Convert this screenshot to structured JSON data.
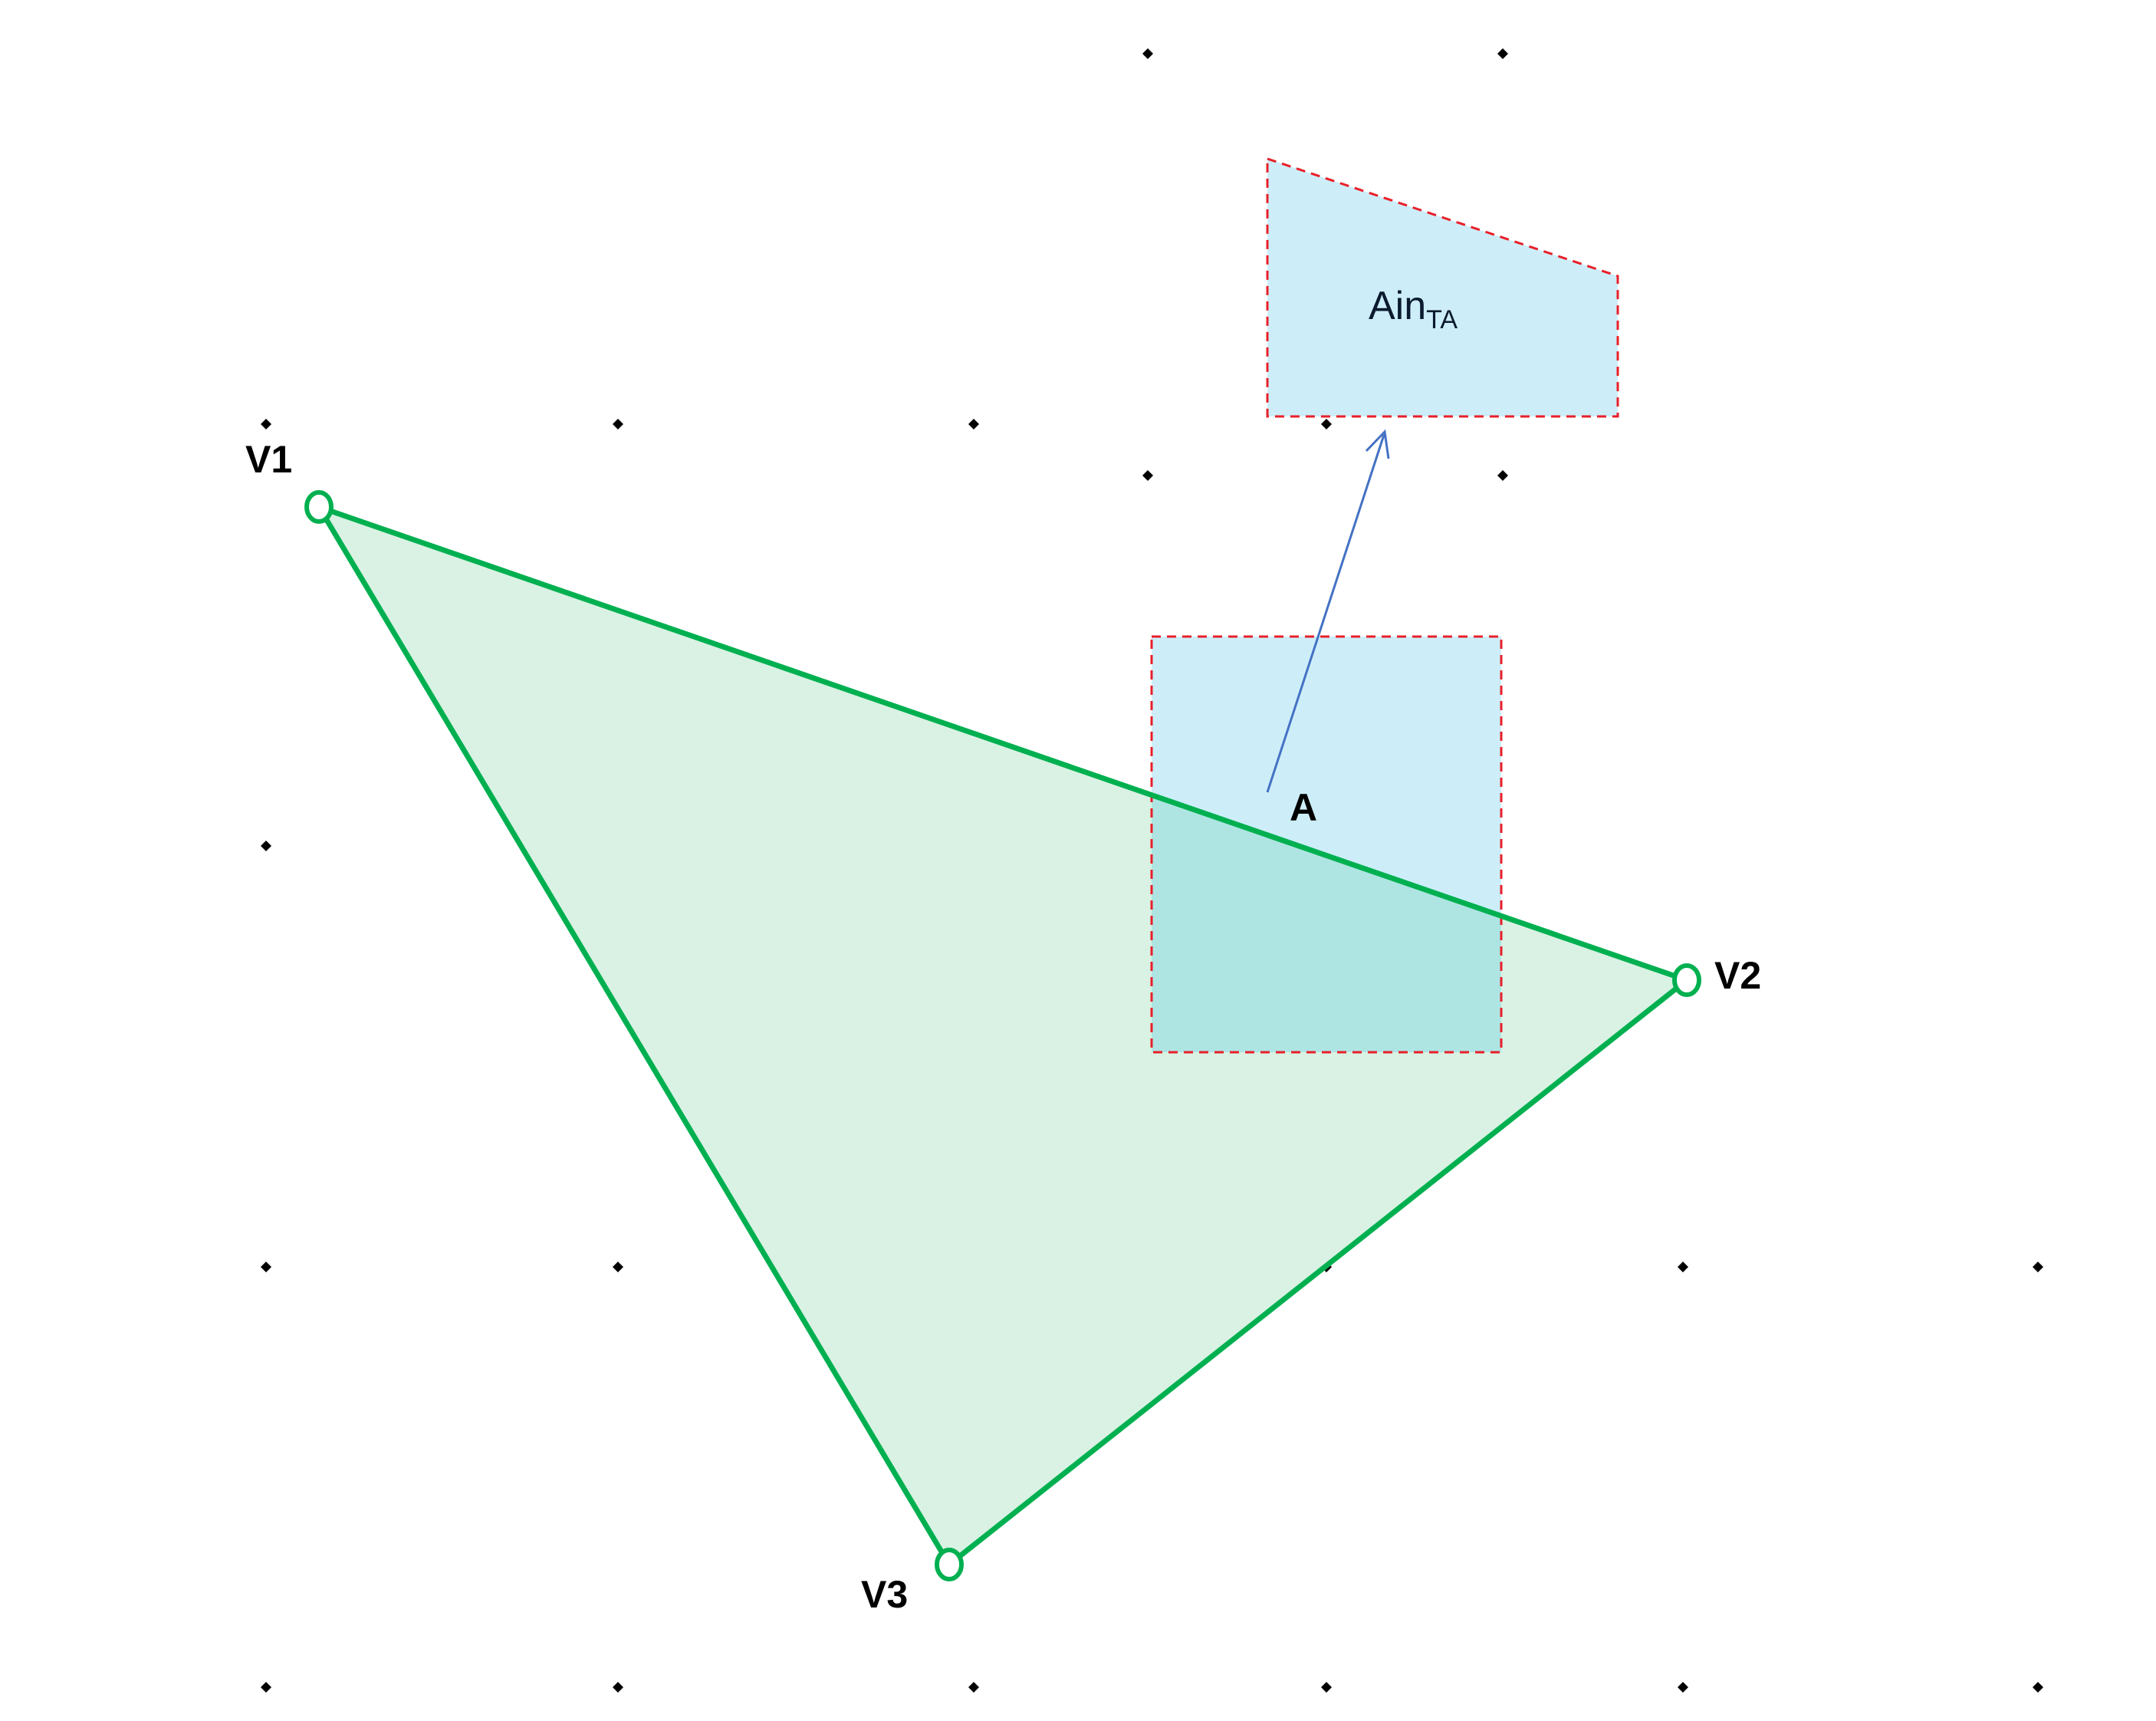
{
  "labels": {
    "v1": "V1",
    "v2": "V2",
    "v3": "V3",
    "a": "A",
    "ain_main": "Ain",
    "ain_sub": "TA"
  },
  "colors": {
    "triangle_stroke": "#00b050",
    "triangle_fill": "#d9f2e4",
    "box_fill": "#cdeef9",
    "overlap_fill": "#aee5e3",
    "box_dash": "#e8202a",
    "arrow": "#4472c4",
    "dot": "#000000"
  }
}
